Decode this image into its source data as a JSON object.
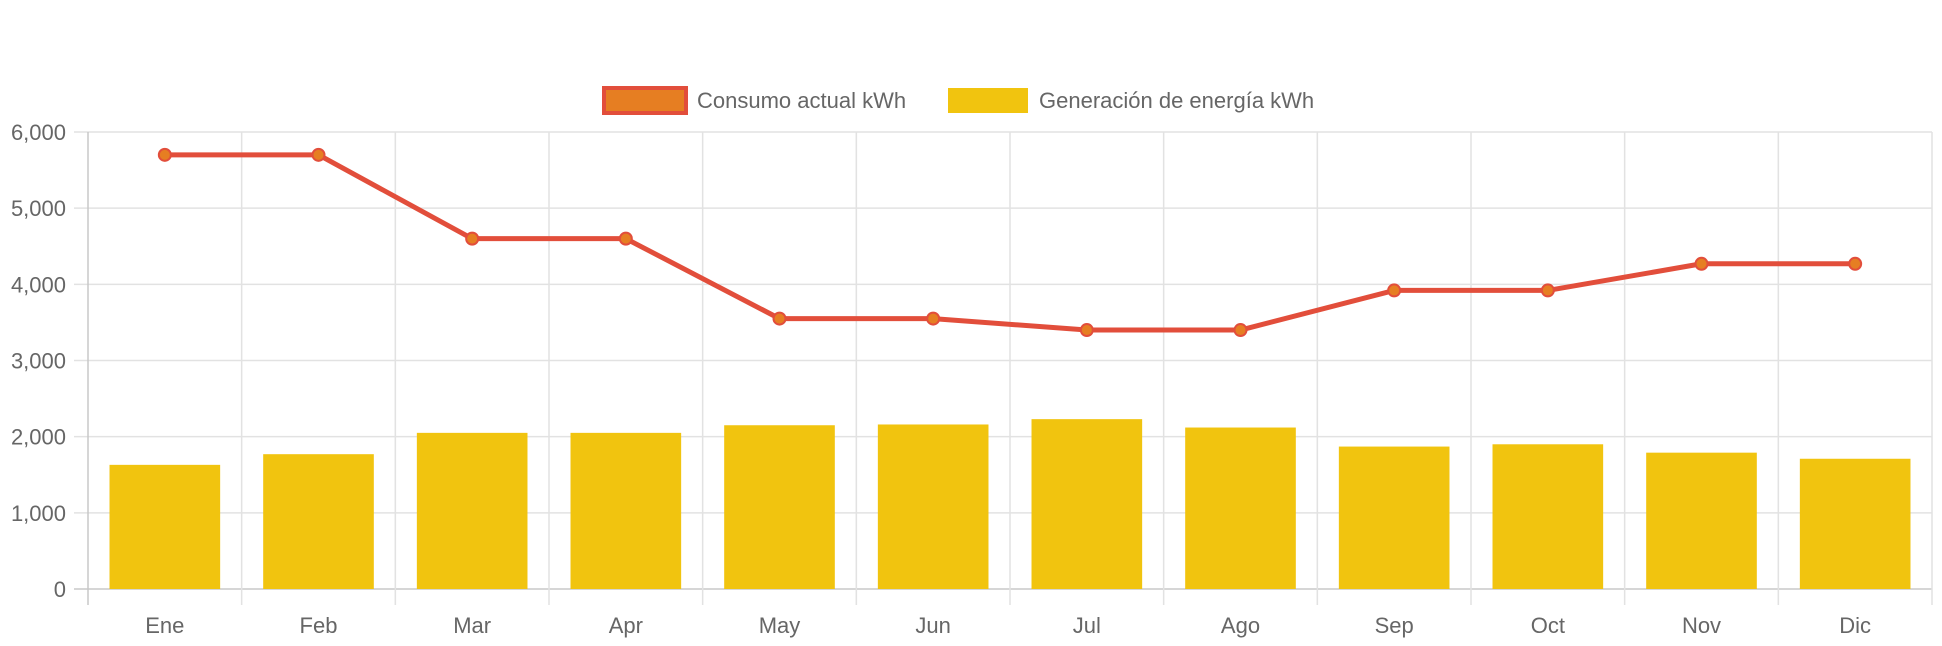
{
  "chart_data": {
    "type": "bar",
    "categories": [
      "Ene",
      "Feb",
      "Mar",
      "Apr",
      "May",
      "Jun",
      "Jul",
      "Ago",
      "Sep",
      "Oct",
      "Nov",
      "Dic"
    ],
    "series": [
      {
        "name": "Consumo actual kWh",
        "type": "line",
        "values": [
          5700,
          5700,
          4600,
          4600,
          3550,
          3550,
          3400,
          3400,
          3920,
          3920,
          4270,
          4270
        ],
        "color": "#e24e3b",
        "point_color": "#e67e22"
      },
      {
        "name": "Generación de energía kWh",
        "type": "bar",
        "values": [
          1630,
          1770,
          2050,
          2050,
          2150,
          2160,
          2230,
          2120,
          1870,
          1900,
          1790,
          1710
        ],
        "color": "#f1c40f"
      }
    ],
    "y_ticks": [
      "0",
      "1,000",
      "2,000",
      "3,000",
      "4,000",
      "5,000",
      "6,000"
    ],
    "ylim": [
      0,
      6000
    ],
    "grid": true,
    "legend_position": "top"
  }
}
